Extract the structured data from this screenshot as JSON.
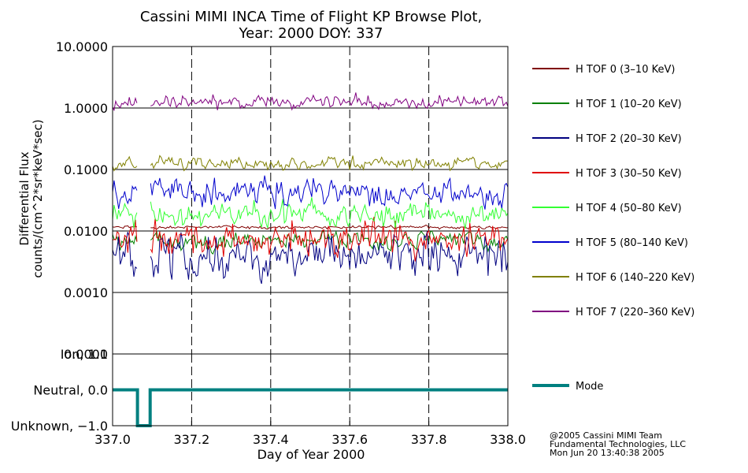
{
  "title_line1": "Cassini MIMI INCA Time of Flight KP Browse Plot,",
  "title_line2": "Year: 2000 DOY: 337",
  "ylabel_line1": "Differential Flux",
  "ylabel_line2": "counts/(cm^2*sr*keV*sec)",
  "xlabel": "Day of Year 2000",
  "credits": {
    "line1": "@2005 Cassini MIMI Team",
    "line2": "Fundamental Technologies, LLC",
    "line3": "Mon Jun 20 13:40:38 2005"
  },
  "chart_data": [
    {
      "type": "line",
      "panel": "flux",
      "yscale": "log",
      "ylim": [
        0.0001,
        10
      ],
      "xlim": [
        337.0,
        338.0
      ],
      "yticks": [
        {
          "value": 10,
          "label": "10.0000"
        },
        {
          "value": 1,
          "label": "1.0000"
        },
        {
          "value": 0.1,
          "label": "0.1000"
        },
        {
          "value": 0.01,
          "label": "0.0100"
        },
        {
          "value": 0.001,
          "label": "0.0010"
        },
        {
          "value": 0.0001,
          "label": "0.0001"
        }
      ],
      "gaps": [
        [
          337.065,
          337.095
        ]
      ],
      "grid": "horizontal lines at decades, dashed vertical lines at 337.2, 337.4, 337.6, 337.8",
      "legend_placement": "right",
      "series": [
        {
          "name": "H TOF 0 (3–10 KeV)",
          "color": "#800000",
          "typical": 0.0115,
          "spread": 0.012
        },
        {
          "name": "H TOF 1 (10–20 KeV)",
          "color": "#008000",
          "typical": 0.0068,
          "spread": 0.07
        },
        {
          "name": "H TOF 2 (20–30 KeV)",
          "color": "#000080",
          "typical": 0.0038,
          "spread": 0.16
        },
        {
          "name": "H TOF 3 (30–50 KeV)",
          "color": "#e00000",
          "typical": 0.0075,
          "spread": 0.13
        },
        {
          "name": "H TOF 4 (50–80 KeV)",
          "color": "#33ff33",
          "typical": 0.019,
          "spread": 0.09
        },
        {
          "name": "H TOF 5 (80–140 KeV)",
          "color": "#0000cc",
          "typical": 0.042,
          "spread": 0.1
        },
        {
          "name": "H TOF 6 (140–220 KeV)",
          "color": "#808000",
          "typical": 0.125,
          "spread": 0.05
        },
        {
          "name": "H TOF 7 (220–360 KeV)",
          "color": "#800080",
          "typical": 1.25,
          "spread": 0.05
        }
      ]
    },
    {
      "type": "line",
      "panel": "mode",
      "ylim": [
        -1.0,
        1.0
      ],
      "xlim": [
        337.0,
        338.0
      ],
      "yticks": [
        {
          "value": 1.0,
          "label": "Ion, 1.0"
        },
        {
          "value": 0.0,
          "label": "Neutral, 0.0"
        },
        {
          "value": -1.0,
          "label": "Unknown, −1.0"
        }
      ],
      "xticks": [
        {
          "value": 337.0,
          "label": "337.0"
        },
        {
          "value": 337.2,
          "label": "337.2"
        },
        {
          "value": 337.4,
          "label": "337.4"
        },
        {
          "value": 337.6,
          "label": "337.6"
        },
        {
          "value": 337.8,
          "label": "337.8"
        },
        {
          "value": 338.0,
          "label": "338.0"
        }
      ],
      "series": [
        {
          "name": "Mode",
          "color": "#008080",
          "x": [
            337.0,
            337.063,
            337.063,
            337.095,
            337.095,
            338.0
          ],
          "y": [
            0.0,
            0.0,
            -1.0,
            -1.0,
            0.0,
            0.0
          ]
        }
      ]
    }
  ]
}
